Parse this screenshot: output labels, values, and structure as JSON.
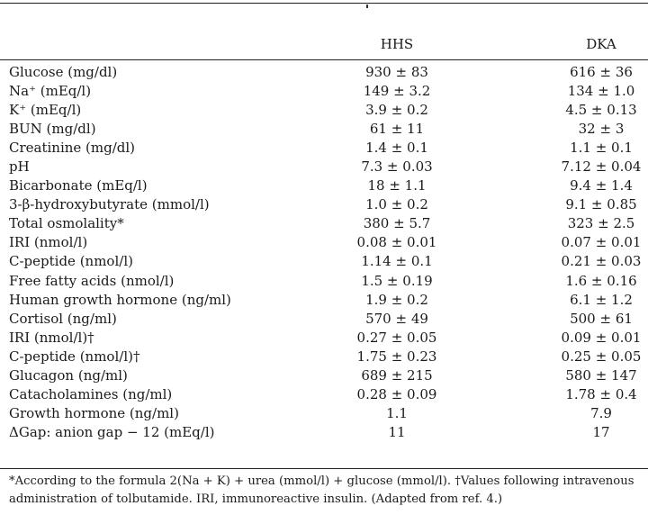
{
  "table": {
    "columns": [
      "HHS",
      "DKA"
    ],
    "rows": [
      {
        "label": "Glucose (mg/dl)",
        "hhs": "930 ± 83",
        "dka": "616 ± 36"
      },
      {
        "label": "Na⁺ (mEq/l)",
        "hhs": "149 ± 3.2",
        "dka": "134 ± 1.0"
      },
      {
        "label": "K⁺ (mEq/l)",
        "hhs": "3.9 ± 0.2",
        "dka": "4.5 ± 0.13"
      },
      {
        "label": "BUN (mg/dl)",
        "hhs": "61 ± 11",
        "dka": "32 ± 3"
      },
      {
        "label": "Creatinine (mg/dl)",
        "hhs": "1.4 ± 0.1",
        "dka": "1.1 ± 0.1"
      },
      {
        "label": "pH",
        "hhs": "7.3 ± 0.03",
        "dka": "7.12 ± 0.04"
      },
      {
        "label": "Bicarbonate (mEq/l)",
        "hhs": "18 ± 1.1",
        "dka": "9.4 ± 1.4"
      },
      {
        "label": "3-β-hydroxybutyrate (mmol/l)",
        "hhs": "1.0 ± 0.2",
        "dka": "9.1 ± 0.85"
      },
      {
        "label": "Total osmolality*",
        "hhs": "380 ± 5.7",
        "dka": "323 ± 2.5"
      },
      {
        "label": "IRI (nmol/l)",
        "hhs": "0.08 ± 0.01",
        "dka": "0.07 ± 0.01"
      },
      {
        "label": "C-peptide (nmol/l)",
        "hhs": "1.14 ± 0.1",
        "dka": "0.21 ± 0.03"
      },
      {
        "label": "Free fatty acids (nmol/l)",
        "hhs": "1.5 ± 0.19",
        "dka": "1.6 ± 0.16"
      },
      {
        "label": "Human growth hormone (ng/ml)",
        "hhs": "1.9 ± 0.2",
        "dka": "6.1 ± 1.2"
      },
      {
        "label": "Cortisol (ng/ml)",
        "hhs": "570 ± 49",
        "dka": "500 ± 61"
      },
      {
        "label": "IRI (nmol/l)†",
        "hhs": "0.27 ± 0.05",
        "dka": "0.09 ± 0.01"
      },
      {
        "label": "C-peptide (nmol/l)†",
        "hhs": "1.75 ± 0.23",
        "dka": "0.25 ± 0.05"
      },
      {
        "label": "Glucagon (ng/ml)",
        "hhs": "689 ± 215",
        "dka": "580 ± 147"
      },
      {
        "label": "Catacholamines (ng/ml)",
        "hhs": "0.28 ± 0.09",
        "dka": "1.78 ± 0.4"
      },
      {
        "label": "Growth hormone (ng/ml)",
        "hhs": "1.1",
        "dka": "7.9"
      },
      {
        "label": "ΔGap: anion gap − 12 (mEq/l)",
        "hhs": "11",
        "dka": "17"
      }
    ]
  },
  "footnote": "*According to the formula 2(Na + K) + urea (mmol/l) + glucose (mmol/l). †Values following intravenous administration of tolbutamide. IRI, immunoreactive insulin. (Adapted from ref. 4.)"
}
